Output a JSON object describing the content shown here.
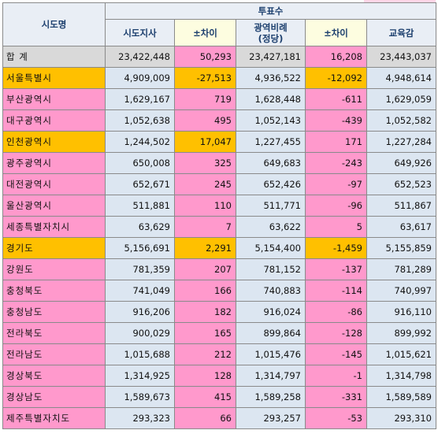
{
  "header": {
    "region_col": "시도명",
    "votes_group": "투표수",
    "cols": [
      "시도지사",
      "±차이",
      "광역비례\n(정당)",
      "±차이",
      "교육감"
    ]
  },
  "rows": [
    {
      "name": "합   계",
      "v1": "23,422,448",
      "d1": "50,293",
      "v2": "23,427,181",
      "d2": "16,208",
      "v3": "23,443,037",
      "name_color": "#d9d9d9",
      "d1_color": "#ff99cc",
      "d2_color": "#ff99cc",
      "total": true
    },
    {
      "name": "서울특별시",
      "v1": "4,909,009",
      "d1": "-27,513",
      "v2": "4,936,522",
      "d2": "-12,092",
      "v3": "4,948,614",
      "name_color": "#ffc000",
      "d1_color": "#ffc000",
      "d2_color": "#ffc000"
    },
    {
      "name": "부산광역시",
      "v1": "1,629,167",
      "d1": "719",
      "v2": "1,628,448",
      "d2": "-611",
      "v3": "1,629,059",
      "name_color": "#ff99cc",
      "d1_color": "#ff99cc",
      "d2_color": "#ff99cc"
    },
    {
      "name": "대구광역시",
      "v1": "1,052,638",
      "d1": "495",
      "v2": "1,052,143",
      "d2": "-439",
      "v3": "1,052,582",
      "name_color": "#ff99cc",
      "d1_color": "#ff99cc",
      "d2_color": "#ff99cc"
    },
    {
      "name": "인천광역시",
      "v1": "1,244,502",
      "d1": "17,047",
      "v2": "1,227,455",
      "d2": "171",
      "v3": "1,227,284",
      "name_color": "#ffc000",
      "d1_color": "#ffc000",
      "d2_color": "#ff99cc"
    },
    {
      "name": "광주광역시",
      "v1": "650,008",
      "d1": "325",
      "v2": "649,683",
      "d2": "-243",
      "v3": "649,926",
      "name_color": "#ff99cc",
      "d1_color": "#ff99cc",
      "d2_color": "#ff99cc"
    },
    {
      "name": "대전광역시",
      "v1": "652,671",
      "d1": "245",
      "v2": "652,426",
      "d2": "-97",
      "v3": "652,523",
      "name_color": "#ff99cc",
      "d1_color": "#ff99cc",
      "d2_color": "#ff99cc"
    },
    {
      "name": "울산광역시",
      "v1": "511,881",
      "d1": "110",
      "v2": "511,771",
      "d2": "-96",
      "v3": "511,867",
      "name_color": "#ff99cc",
      "d1_color": "#ff99cc",
      "d2_color": "#ff99cc"
    },
    {
      "name": "세종특별자치시",
      "v1": "63,629",
      "d1": "7",
      "v2": "63,622",
      "d2": "5",
      "v3": "63,617",
      "name_color": "#ff99cc",
      "d1_color": "#ff99cc",
      "d2_color": "#ff99cc"
    },
    {
      "name": "경기도",
      "v1": "5,156,691",
      "d1": "2,291",
      "v2": "5,154,400",
      "d2": "-1,459",
      "v3": "5,155,859",
      "name_color": "#ffc000",
      "d1_color": "#ffc000",
      "d2_color": "#ffc000"
    },
    {
      "name": "강원도",
      "v1": "781,359",
      "d1": "207",
      "v2": "781,152",
      "d2": "-137",
      "v3": "781,289",
      "name_color": "#ff99cc",
      "d1_color": "#ff99cc",
      "d2_color": "#ff99cc"
    },
    {
      "name": "충청북도",
      "v1": "741,049",
      "d1": "166",
      "v2": "740,883",
      "d2": "-114",
      "v3": "740,997",
      "name_color": "#ff99cc",
      "d1_color": "#ff99cc",
      "d2_color": "#ff99cc"
    },
    {
      "name": "충청남도",
      "v1": "916,206",
      "d1": "182",
      "v2": "916,024",
      "d2": "-86",
      "v3": "916,110",
      "name_color": "#ff99cc",
      "d1_color": "#ff99cc",
      "d2_color": "#ff99cc"
    },
    {
      "name": "전라북도",
      "v1": "900,029",
      "d1": "165",
      "v2": "899,864",
      "d2": "-128",
      "v3": "899,992",
      "name_color": "#ff99cc",
      "d1_color": "#ff99cc",
      "d2_color": "#ff99cc"
    },
    {
      "name": "전라남도",
      "v1": "1,015,688",
      "d1": "212",
      "v2": "1,015,476",
      "d2": "-145",
      "v3": "1,015,621",
      "name_color": "#ff99cc",
      "d1_color": "#ff99cc",
      "d2_color": "#ff99cc"
    },
    {
      "name": "경상북도",
      "v1": "1,314,925",
      "d1": "128",
      "v2": "1,314,797",
      "d2": "-1",
      "v3": "1,314,798",
      "name_color": "#ff99cc",
      "d1_color": "#ff99cc",
      "d2_color": "#ff99cc"
    },
    {
      "name": "경상남도",
      "v1": "1,589,673",
      "d1": "415",
      "v2": "1,589,258",
      "d2": "-331",
      "v3": "1,589,589",
      "name_color": "#ff99cc",
      "d1_color": "#ff99cc",
      "d2_color": "#ff99cc"
    },
    {
      "name": "제주특별자치도",
      "v1": "293,323",
      "d1": "66",
      "v2": "293,257",
      "d2": "-53",
      "v3": "293,310",
      "name_color": "#ff99cc",
      "d1_color": "#ff99cc",
      "d2_color": "#ff99cc"
    }
  ],
  "colors": {
    "header_bg": "#e9eef5",
    "header_text": "#1c3f6e",
    "diff_header_bg": "#fdfde0",
    "value_bg": "#dce6f1",
    "highlight_orange": "#ffc000",
    "highlight_pink": "#ff99cc",
    "total_bg": "#d9d9d9"
  }
}
